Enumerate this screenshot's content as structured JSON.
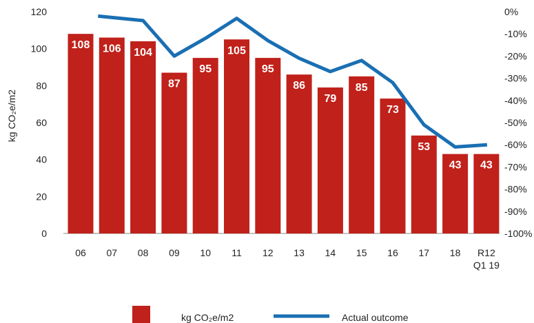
{
  "chart_data": {
    "type": "bar",
    "categories": [
      [
        "06"
      ],
      [
        "07"
      ],
      [
        "08"
      ],
      [
        "09"
      ],
      [
        "10"
      ],
      [
        "11"
      ],
      [
        "12"
      ],
      [
        "13"
      ],
      [
        "14"
      ],
      [
        "15"
      ],
      [
        "16"
      ],
      [
        "17"
      ],
      [
        "18"
      ],
      [
        "R12",
        "Q1 19"
      ]
    ],
    "series": [
      {
        "name": "kg CO₂e/m2",
        "type": "bar",
        "axis": "left",
        "color": "#c0211a",
        "values": [
          108,
          106,
          104,
          87,
          95,
          105,
          95,
          86,
          79,
          85,
          73,
          53,
          43,
          43
        ],
        "labels": [
          "108",
          "106",
          "104",
          "87",
          "95",
          "105",
          "95",
          "86",
          "79",
          "85",
          "73",
          "53",
          "43",
          "43"
        ]
      },
      {
        "name": "Actual outcome",
        "type": "line",
        "axis": "right",
        "color": "#1a6fb3",
        "values": [
          null,
          -2,
          -4,
          -20,
          -12,
          -3,
          -13,
          -21,
          -27,
          -22,
          -32,
          -51,
          -61,
          -60
        ]
      }
    ],
    "ylabel": "kg CO₂e/m2",
    "ylim": [
      0,
      120
    ],
    "y_ticks": [
      "0",
      "20",
      "40",
      "60",
      "80",
      "100",
      "120"
    ],
    "y2lim": [
      -100,
      0
    ],
    "y2_ticks": [
      "0%",
      "-10%",
      "-20%",
      "-30%",
      "-40%",
      "-50%",
      "-60%",
      "-70%",
      "-80%",
      "-90%",
      "-100%"
    ],
    "grid": false,
    "legend_position": "bottom"
  }
}
